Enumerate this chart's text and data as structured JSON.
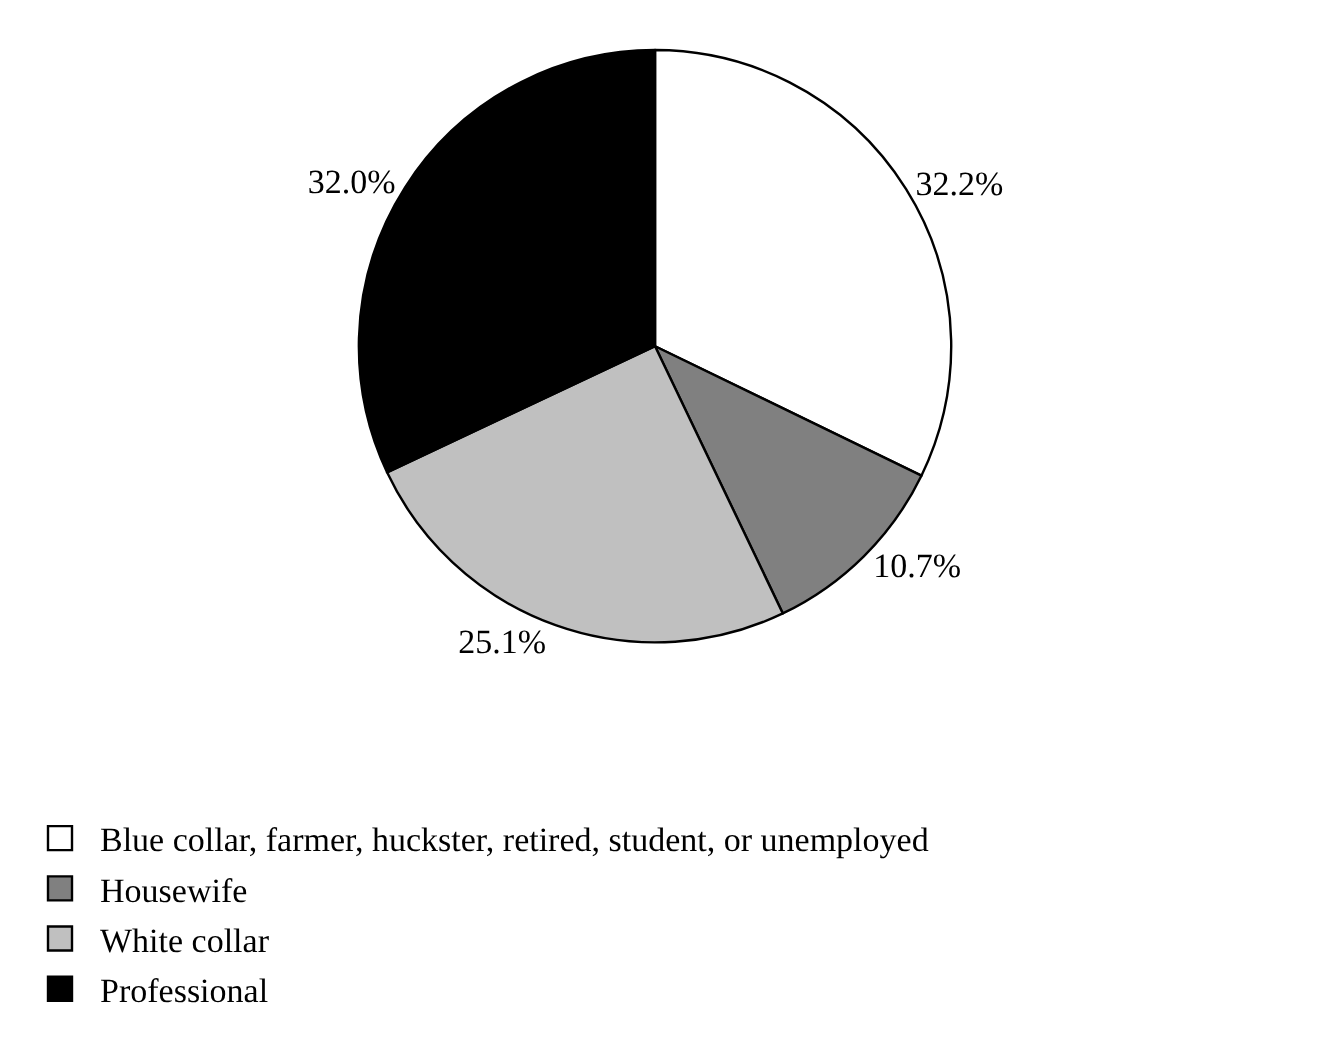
{
  "chart_data": {
    "type": "pie",
    "categories": [
      "Blue collar, farmer, huckster, retired, student, or unemployed",
      "Housewife",
      "White collar",
      "Professional"
    ],
    "values": [
      32.2,
      10.7,
      25.1,
      32.0
    ],
    "value_labels": [
      "32.2%",
      "10.7%",
      "25.1%",
      "32.0%"
    ],
    "colors": [
      "#ffffff",
      "#808080",
      "#c0c0c0",
      "#000000"
    ],
    "legend": "bottom"
  }
}
